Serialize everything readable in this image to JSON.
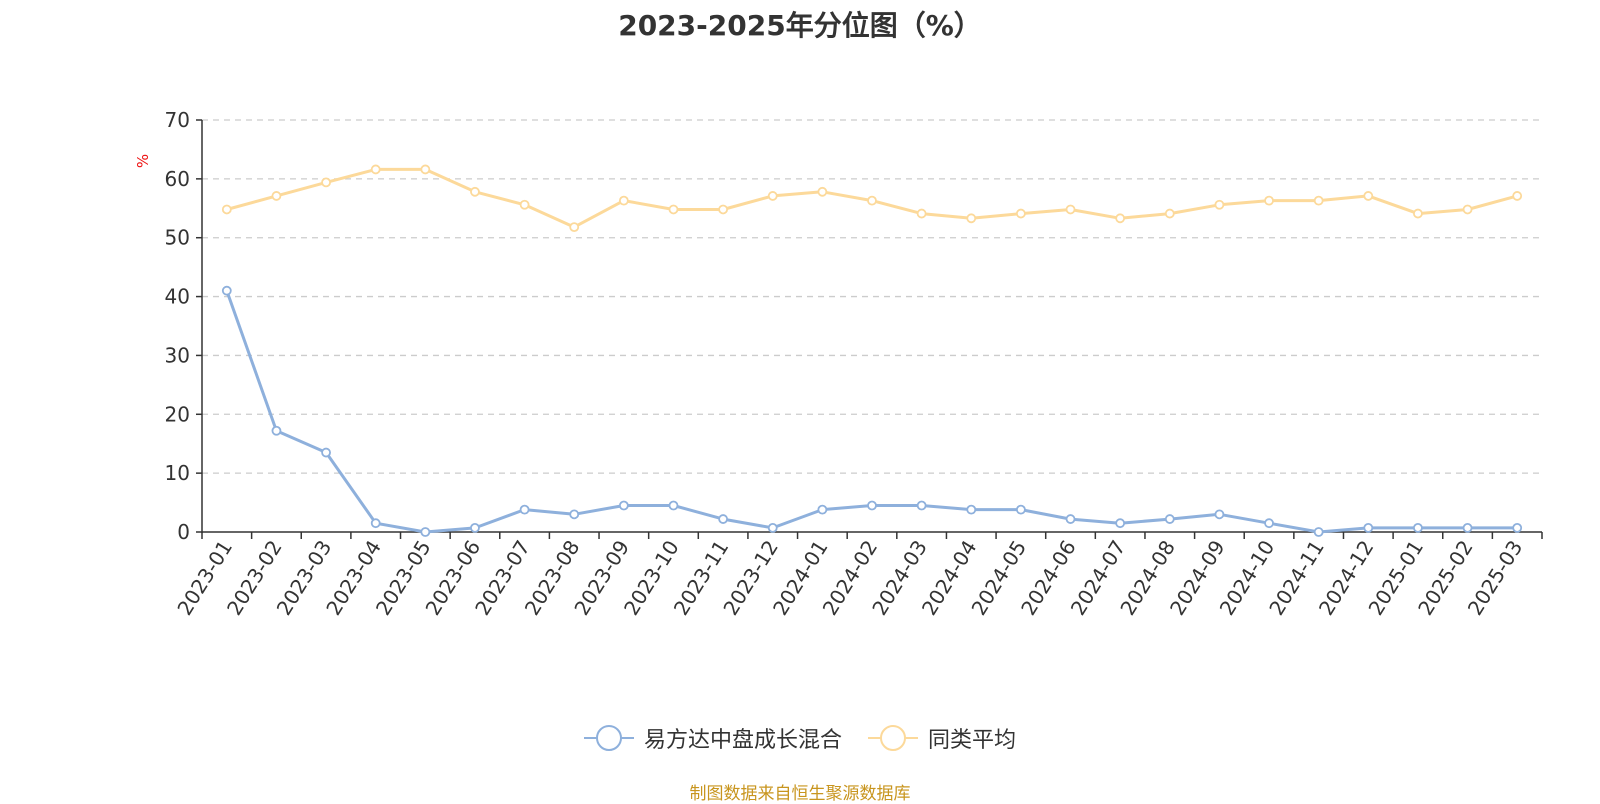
{
  "chart_data": {
    "type": "line",
    "title": "2023-2025年分位图（%）",
    "ylabel": "%",
    "xlabel": "",
    "ylim": [
      0,
      70
    ],
    "yticks": [
      0,
      10,
      20,
      30,
      40,
      50,
      60,
      70
    ],
    "grid": true,
    "legend_position": "bottom-center",
    "categories": [
      "2023-01",
      "2023-02",
      "2023-03",
      "2023-04",
      "2023-05",
      "2023-06",
      "2023-07",
      "2023-08",
      "2023-09",
      "2023-10",
      "2023-11",
      "2023-12",
      "2024-01",
      "2024-02",
      "2024-03",
      "2024-04",
      "2024-05",
      "2024-06",
      "2024-07",
      "2024-08",
      "2024-09",
      "2024-10",
      "2024-11",
      "2024-12",
      "2025-01",
      "2025-02",
      "2025-03"
    ],
    "series": [
      {
        "name": "易方达中盘成长混合",
        "color": "#8eb0dc",
        "values": [
          41,
          17.2,
          13.5,
          1.5,
          0,
          0.7,
          3.8,
          3.0,
          4.5,
          4.5,
          2.2,
          0.7,
          3.8,
          4.5,
          4.5,
          3.8,
          3.8,
          2.2,
          1.5,
          2.2,
          3.0,
          1.5,
          0,
          0.7,
          0.7,
          0.7,
          0.7
        ]
      },
      {
        "name": "同类平均",
        "color": "#fcd99a",
        "values": [
          54.8,
          57.1,
          59.4,
          61.6,
          61.6,
          57.8,
          55.6,
          51.8,
          56.3,
          54.8,
          54.8,
          57.1,
          57.8,
          56.3,
          54.1,
          53.3,
          54.1,
          54.8,
          53.3,
          54.1,
          55.6,
          56.3,
          56.3,
          57.1,
          54.1,
          54.8,
          57.1
        ]
      }
    ]
  },
  "legend": {
    "items": [
      {
        "label": "易方达中盘成长混合",
        "color": "#8eb0dc"
      },
      {
        "label": "同类平均",
        "color": "#fcd99a"
      }
    ]
  },
  "source_note": "制图数据来自恒生聚源数据库"
}
